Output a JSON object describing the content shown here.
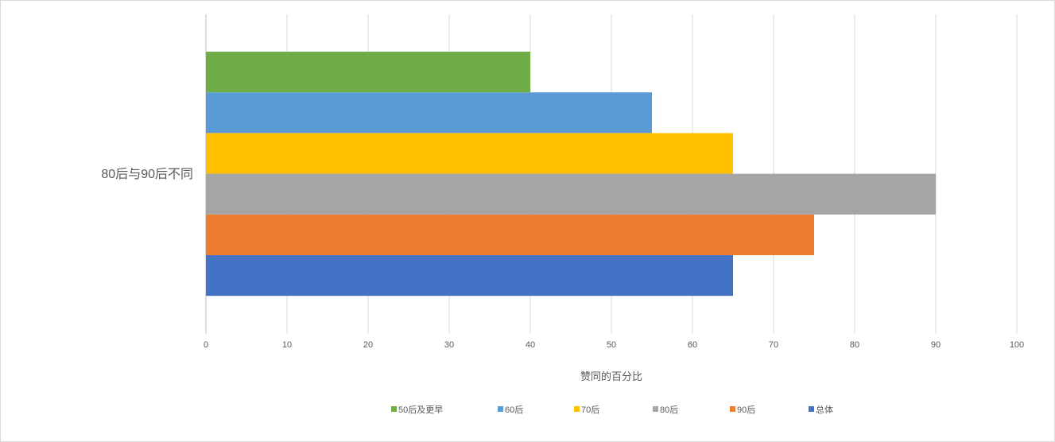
{
  "chart_data": {
    "type": "bar",
    "orientation": "horizontal",
    "categories": [
      "80后与90后不同"
    ],
    "series": [
      {
        "name": "50后及更早",
        "values": [
          40
        ],
        "color": "#70AD47"
      },
      {
        "name": "60后",
        "values": [
          55
        ],
        "color": "#5B9BD5"
      },
      {
        "name": "70后",
        "values": [
          65
        ],
        "color": "#FFC000"
      },
      {
        "name": "80后",
        "values": [
          90
        ],
        "color": "#A5A5A5"
      },
      {
        "name": "90后",
        "values": [
          75
        ],
        "color": "#ED7D31"
      },
      {
        "name": "总体",
        "values": [
          65
        ],
        "color": "#4472C4"
      }
    ],
    "title": "",
    "xlabel": "赞同的百分比",
    "ylabel": "",
    "xlim": [
      0,
      100
    ],
    "xticks": [
      "0",
      "10",
      "20",
      "30",
      "40",
      "50",
      "60",
      "70",
      "80",
      "90",
      "100"
    ],
    "grid": true,
    "legend_position": "bottom"
  }
}
